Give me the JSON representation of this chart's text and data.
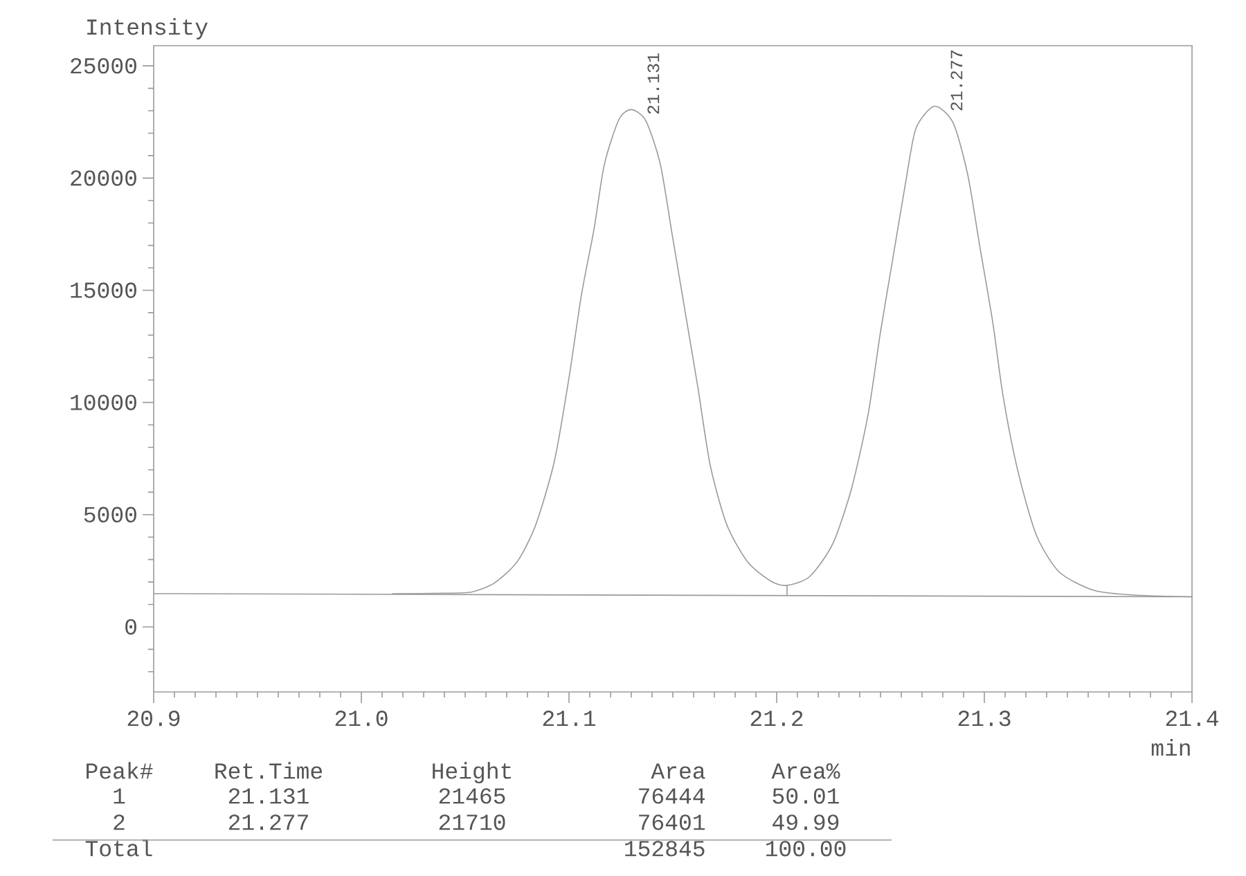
{
  "chart_data": {
    "type": "line",
    "xlabel": "min",
    "ylabel": "Intensity",
    "xlim": [
      20.9,
      21.4
    ],
    "ylim": [
      -2900,
      25900
    ],
    "xticks": [
      {
        "value": 20.9,
        "label": "20.9"
      },
      {
        "value": 20.91,
        "label": null
      },
      {
        "value": 20.92,
        "label": null
      },
      {
        "value": 20.93,
        "label": null
      },
      {
        "value": 20.94,
        "label": null
      },
      {
        "value": 20.95,
        "label": null
      },
      {
        "value": 20.96,
        "label": null
      },
      {
        "value": 20.97,
        "label": null
      },
      {
        "value": 20.98,
        "label": null
      },
      {
        "value": 20.99,
        "label": null
      },
      {
        "value": 21.0,
        "label": "21.0"
      },
      {
        "value": 21.01,
        "label": null
      },
      {
        "value": 21.02,
        "label": null
      },
      {
        "value": 21.03,
        "label": null
      },
      {
        "value": 21.04,
        "label": null
      },
      {
        "value": 21.05,
        "label": null
      },
      {
        "value": 21.06,
        "label": null
      },
      {
        "value": 21.07,
        "label": null
      },
      {
        "value": 21.08,
        "label": null
      },
      {
        "value": 21.09,
        "label": null
      },
      {
        "value": 21.1,
        "label": "21.1"
      },
      {
        "value": 21.11,
        "label": null
      },
      {
        "value": 21.12,
        "label": null
      },
      {
        "value": 21.13,
        "label": null
      },
      {
        "value": 21.14,
        "label": null
      },
      {
        "value": 21.15,
        "label": null
      },
      {
        "value": 21.16,
        "label": null
      },
      {
        "value": 21.17,
        "label": null
      },
      {
        "value": 21.18,
        "label": null
      },
      {
        "value": 21.19,
        "label": null
      },
      {
        "value": 21.2,
        "label": "21.2"
      },
      {
        "value": 21.21,
        "label": null
      },
      {
        "value": 21.22,
        "label": null
      },
      {
        "value": 21.23,
        "label": null
      },
      {
        "value": 21.24,
        "label": null
      },
      {
        "value": 21.25,
        "label": null
      },
      {
        "value": 21.26,
        "label": null
      },
      {
        "value": 21.27,
        "label": null
      },
      {
        "value": 21.28,
        "label": null
      },
      {
        "value": 21.29,
        "label": null
      },
      {
        "value": 21.3,
        "label": "21.3"
      },
      {
        "value": 21.31,
        "label": null
      },
      {
        "value": 21.32,
        "label": null
      },
      {
        "value": 21.33,
        "label": null
      },
      {
        "value": 21.34,
        "label": null
      },
      {
        "value": 21.35,
        "label": null
      },
      {
        "value": 21.36,
        "label": null
      },
      {
        "value": 21.37,
        "label": null
      },
      {
        "value": 21.38,
        "label": null
      },
      {
        "value": 21.39,
        "label": null
      },
      {
        "value": 21.4,
        "label": "21.4"
      }
    ],
    "yticks": [
      {
        "value": -2000,
        "label": null
      },
      {
        "value": -1000,
        "label": null
      },
      0,
      {
        "value": 1000,
        "label": null
      },
      {
        "value": 2000,
        "label": null
      },
      {
        "value": 3000,
        "label": null
      },
      {
        "value": 4000,
        "label": null
      },
      5000,
      {
        "value": 6000,
        "label": null
      },
      {
        "value": 7000,
        "label": null
      },
      {
        "value": 8000,
        "label": null
      },
      {
        "value": 9000,
        "label": null
      },
      10000,
      {
        "value": 11000,
        "label": null
      },
      {
        "value": 12000,
        "label": null
      },
      {
        "value": 13000,
        "label": null
      },
      {
        "value": 14000,
        "label": null
      },
      15000,
      {
        "value": 16000,
        "label": null
      },
      {
        "value": 17000,
        "label": null
      },
      {
        "value": 18000,
        "label": null
      },
      {
        "value": 19000,
        "label": null
      },
      20000,
      {
        "value": 21000,
        "label": null
      },
      {
        "value": 22000,
        "label": null
      },
      {
        "value": 23000,
        "label": null
      },
      {
        "value": 24000,
        "label": null
      },
      25000
    ],
    "marker": "none",
    "line_style": "solid",
    "series": [
      {
        "color": "#9a9a9a",
        "x": [
          21.015,
          21.04,
          21.053,
          21.064,
          21.075,
          21.084,
          21.093,
          21.1,
          21.106,
          21.112,
          21.117,
          21.124,
          21.13,
          21.137,
          21.144,
          21.15,
          21.156,
          21.162,
          21.168,
          21.176,
          21.186,
          21.197,
          21.205,
          21.216,
          21.227,
          21.236,
          21.244,
          21.25,
          21.256,
          21.262,
          21.267,
          21.276,
          21.285,
          21.292,
          21.298,
          21.304,
          21.309,
          21.316,
          21.325,
          21.336,
          21.352,
          21.367,
          21.385,
          21.4
        ],
        "values": [
          1480,
          1500,
          1550,
          1950,
          2900,
          4550,
          7400,
          11100,
          14800,
          17700,
          20600,
          22600,
          23050,
          22550,
          20600,
          17300,
          14000,
          10700,
          7200,
          4550,
          2900,
          2050,
          1850,
          2250,
          3700,
          6150,
          9450,
          13150,
          16450,
          19750,
          22200,
          23200,
          22450,
          20150,
          16850,
          13600,
          10300,
          7000,
          4100,
          2450,
          1650,
          1450,
          1370,
          1340
        ]
      },
      {
        "color": "#9a9a9a",
        "x": [
          20.9,
          21.4
        ],
        "values": [
          1480,
          1340
        ]
      },
      {
        "color": "#9a9a9a",
        "x": [
          21.205,
          21.205
        ],
        "values": [
          1850,
          1400
        ]
      }
    ],
    "annotations": [
      {
        "text": "21.131",
        "x": 21.131,
        "y": 23050
      },
      {
        "text": "21.277",
        "x": 21.277,
        "y": 23200
      },
      "Peak#",
      "Ret.Time",
      "Height",
      "Area",
      "Area%",
      "1",
      "21.131",
      "21465",
      "76444",
      "50.01",
      "2",
      "21.277",
      "21710",
      "76401",
      "49.99",
      "Total",
      "152845",
      "100.00"
    ]
  }
}
